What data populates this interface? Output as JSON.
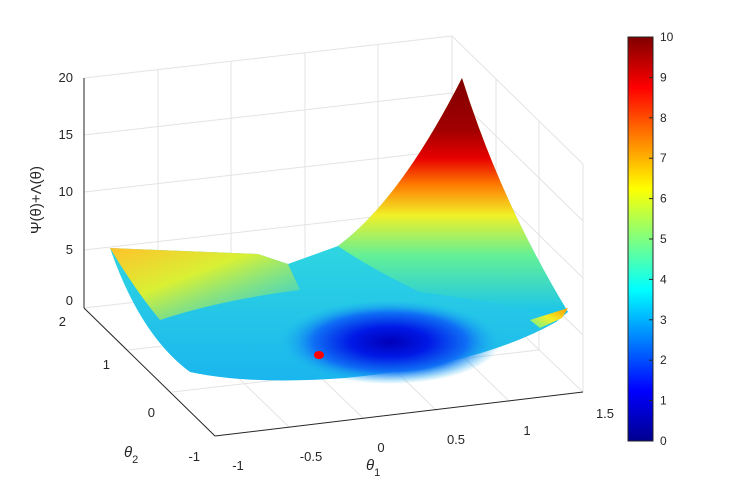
{
  "chart_data": {
    "type": "surface",
    "zlabel": "Ψ(θ)+Λ(θ)",
    "xlabel": "θ",
    "xlabel_subscript": "1",
    "ylabel": "θ",
    "ylabel_subscript": "2",
    "x_ticks": [
      "-1",
      "-0.5",
      "0",
      "0.5",
      "1",
      "1.5"
    ],
    "y_ticks": [
      "-1",
      "0",
      "1",
      "2"
    ],
    "z_ticks": [
      "0",
      "5",
      "10",
      "15",
      "20"
    ],
    "xlim": [
      -1,
      1.5
    ],
    "ylim": [
      -1,
      2
    ],
    "zlim": [
      0,
      20
    ],
    "colorbar": {
      "ticks": [
        "0",
        "1",
        "2",
        "3",
        "4",
        "5",
        "6",
        "7",
        "8",
        "9",
        "10"
      ],
      "range": [
        0,
        10
      ],
      "colormap": "jet"
    },
    "minimum_point": {
      "x": 0.1,
      "y": 0.2,
      "color": "#ff0000"
    },
    "grid": true
  }
}
